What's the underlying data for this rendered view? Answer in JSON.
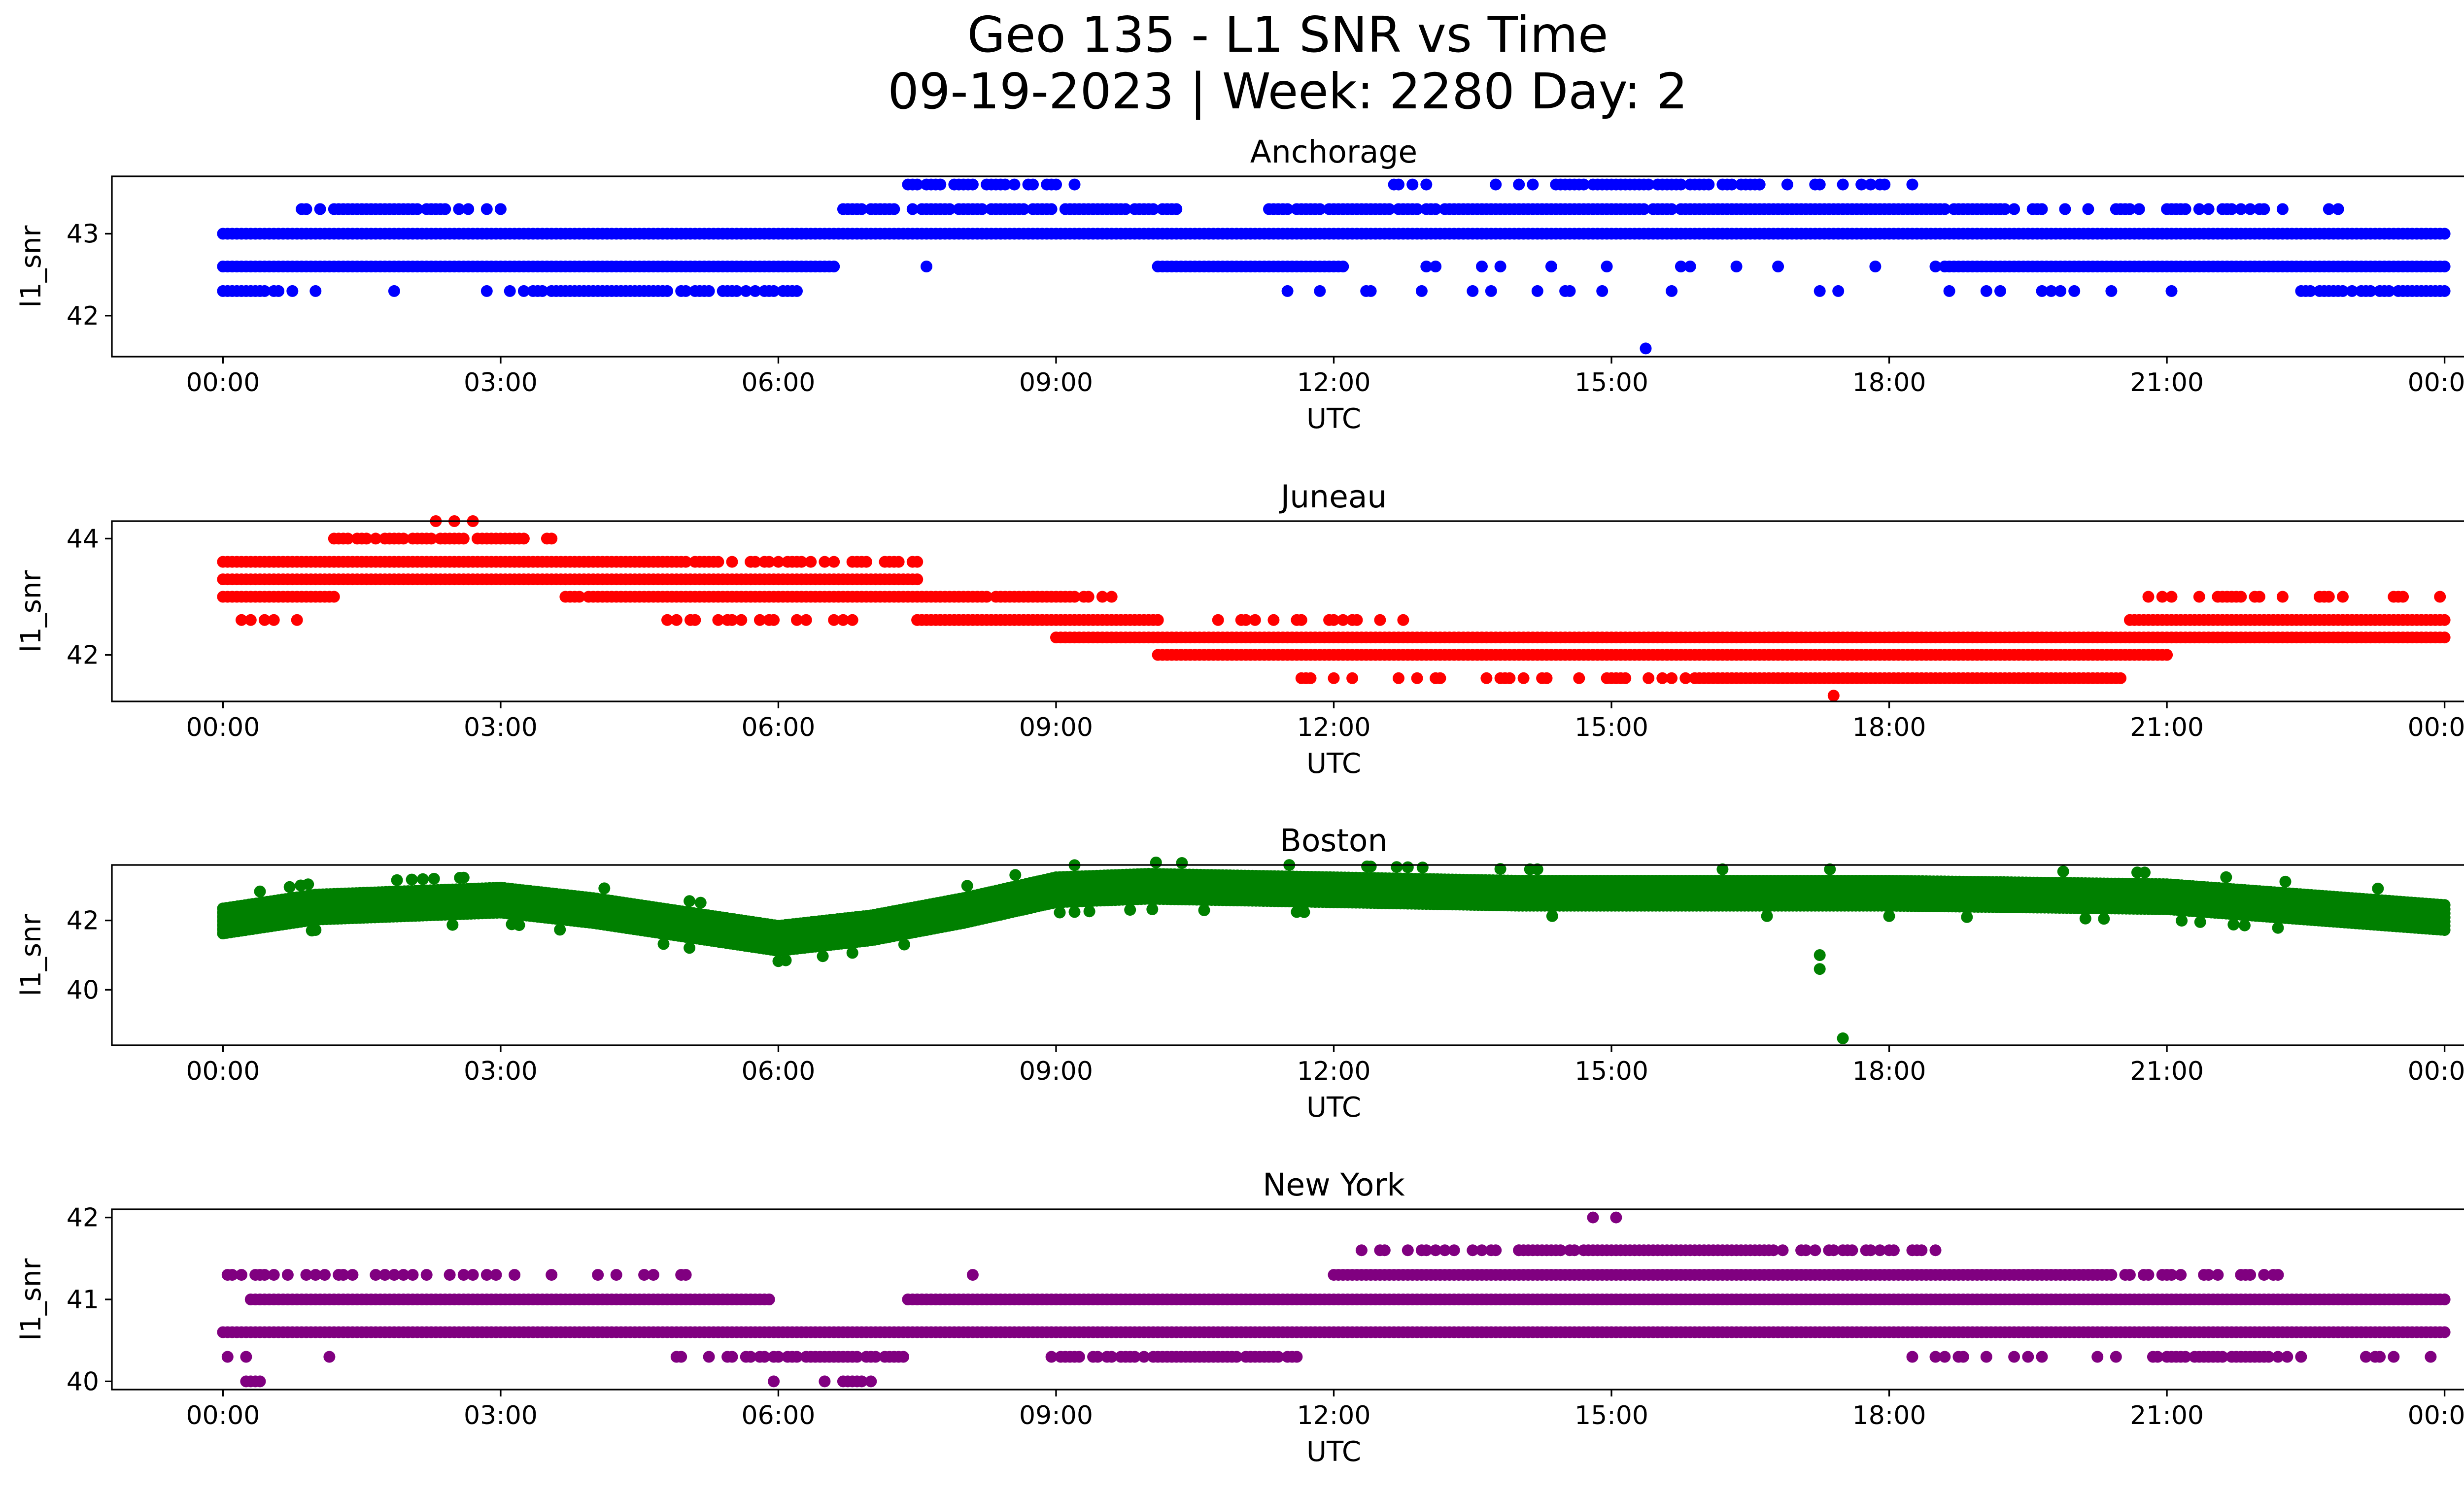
{
  "figure": {
    "title_line1": "Geo 135 - L1 SNR vs Time",
    "title_line2": "09-19-2023 | Week: 2280 Day: 2"
  },
  "chart_data": [
    {
      "type": "scatter",
      "title": "Anchorage",
      "xlabel": "UTC",
      "ylabel": "l1_snr",
      "color": "#0000ff",
      "xlim_hours": [
        -1.2,
        25.2
      ],
      "ylim": [
        41.5,
        43.7
      ],
      "xticks": [
        "00:00",
        "03:00",
        "06:00",
        "09:00",
        "12:00",
        "15:00",
        "18:00",
        "21:00",
        "00:00"
      ],
      "yticks": [
        42,
        43
      ],
      "grid": false,
      "bands": [
        {
          "y": 43.0,
          "ranges": [
            [
              0.0,
              24.0
            ]
          ],
          "density": 1.0
        },
        {
          "y": 42.6,
          "ranges": [
            [
              0.0,
              6.6
            ],
            [
              10.1,
              12.1
            ],
            [
              18.6,
              24.0
            ]
          ],
          "density": 1.0
        },
        {
          "y": 42.6,
          "ranges": [
            [
              6.6,
              8.0
            ],
            [
              12.1,
              18.6
            ]
          ],
          "density": 0.12
        },
        {
          "y": 42.3,
          "ranges": [
            [
              0.0,
              0.6
            ],
            [
              3.2,
              6.2
            ],
            [
              22.5,
              24.0
            ]
          ],
          "density": 0.85
        },
        {
          "y": 42.3,
          "ranges": [
            [
              0.6,
              3.2
            ],
            [
              10.7,
              22.5
            ]
          ],
          "density": 0.08
        },
        {
          "y": 43.3,
          "ranges": [
            [
              1.2,
              2.4
            ],
            [
              6.7,
              10.3
            ],
            [
              11.3,
              19.2
            ]
          ],
          "density": 0.9
        },
        {
          "y": 43.3,
          "ranges": [
            [
              0.7,
              1.2
            ],
            [
              2.4,
              3.0
            ],
            [
              19.2,
              22.9
            ]
          ],
          "density": 0.35
        },
        {
          "y": 43.6,
          "ranges": [
            [
              7.4,
              9.0
            ],
            [
              14.4,
              16.6
            ]
          ],
          "density": 0.75
        },
        {
          "y": 43.6,
          "ranges": [
            [
              12.5,
              14.4
            ],
            [
              16.6,
              18.4
            ]
          ],
          "density": 0.22
        }
      ],
      "outliers": [
        {
          "x": 15.37,
          "y": 41.6
        },
        {
          "x": 9.2,
          "y": 43.6
        },
        {
          "x": 12.65,
          "y": 43.6
        }
      ]
    },
    {
      "type": "scatter",
      "title": "Juneau",
      "xlabel": "UTC",
      "ylabel": "l1_snr",
      "color": "#ff0000",
      "xlim_hours": [
        -1.2,
        25.2
      ],
      "ylim": [
        41.2,
        44.3
      ],
      "xticks": [
        "00:00",
        "03:00",
        "06:00",
        "09:00",
        "12:00",
        "15:00",
        "18:00",
        "21:00",
        "00:00"
      ],
      "yticks": [
        42,
        44
      ],
      "grid": false,
      "bands": [
        {
          "y": 43.3,
          "ranges": [
            [
              0.0,
              7.5
            ]
          ],
          "density": 1.0
        },
        {
          "y": 43.6,
          "ranges": [
            [
              0.0,
              5.0
            ]
          ],
          "density": 1.0
        },
        {
          "y": 43.6,
          "ranges": [
            [
              5.0,
              7.5
            ]
          ],
          "density": 0.55
        },
        {
          "y": 44.0,
          "ranges": [
            [
              1.2,
              3.2
            ]
          ],
          "density": 0.9
        },
        {
          "y": 44.0,
          "ranges": [
            [
              3.2,
              3.7
            ]
          ],
          "density": 0.4
        },
        {
          "y": 43.0,
          "ranges": [
            [
              0.0,
              1.2
            ],
            [
              3.7,
              9.6
            ]
          ],
          "density": 0.95
        },
        {
          "y": 42.6,
          "ranges": [
            [
              0.0,
              0.8
            ]
          ],
          "density": 0.3
        },
        {
          "y": 42.6,
          "ranges": [
            [
              7.5,
              10.1
            ],
            [
              20.6,
              24.0
            ]
          ],
          "density": 1.0
        },
        {
          "y": 42.6,
          "ranges": [
            [
              4.6,
              7.5
            ],
            [
              10.1,
              13.5
            ]
          ],
          "density": 0.3
        },
        {
          "y": 42.3,
          "ranges": [
            [
              9.0,
              24.0
            ]
          ],
          "density": 1.0
        },
        {
          "y": 42.0,
          "ranges": [
            [
              10.1,
              21.0
            ]
          ],
          "density": 1.0
        },
        {
          "y": 41.6,
          "ranges": [
            [
              15.9,
              20.5
            ]
          ],
          "density": 1.0
        },
        {
          "y": 41.6,
          "ranges": [
            [
              11.0,
              15.9
            ]
          ],
          "density": 0.25
        },
        {
          "y": 43.0,
          "ranges": [
            [
              20.8,
              24.0
            ]
          ],
          "density": 0.3
        }
      ],
      "outliers": [
        {
          "x": 2.3,
          "y": 44.3
        },
        {
          "x": 2.5,
          "y": 44.3
        },
        {
          "x": 2.7,
          "y": 44.3
        },
        {
          "x": 17.4,
          "y": 41.3
        }
      ]
    },
    {
      "type": "scatter",
      "title": "Boston",
      "xlabel": "UTC",
      "ylabel": "l1_snr",
      "color": "#008000",
      "xlim_hours": [
        -1.2,
        25.2
      ],
      "ylim": [
        38.4,
        43.6
      ],
      "xticks": [
        "00:00",
        "03:00",
        "06:00",
        "09:00",
        "12:00",
        "15:00",
        "18:00",
        "21:00",
        "00:00"
      ],
      "yticks": [
        40,
        42
      ],
      "grid": false,
      "profile": [
        [
          0.0,
          42.0
        ],
        [
          1.0,
          42.4
        ],
        [
          3.0,
          42.6
        ],
        [
          4.0,
          42.3
        ],
        [
          5.0,
          41.9
        ],
        [
          6.0,
          41.5
        ],
        [
          7.0,
          41.8
        ],
        [
          8.0,
          42.3
        ],
        [
          9.0,
          42.9
        ],
        [
          10.0,
          43.0
        ],
        [
          14.0,
          42.8
        ],
        [
          18.0,
          42.8
        ],
        [
          21.0,
          42.7
        ],
        [
          24.0,
          42.1
        ]
      ],
      "spread": 0.75,
      "outliers": [
        {
          "x": 17.25,
          "y": 41.0
        },
        {
          "x": 17.25,
          "y": 40.6
        },
        {
          "x": 17.5,
          "y": 38.6
        }
      ]
    },
    {
      "type": "scatter",
      "title": "New York",
      "xlabel": "UTC",
      "ylabel": "l1_snr",
      "color": "#800080",
      "xlim_hours": [
        -1.2,
        25.2
      ],
      "ylim": [
        39.9,
        42.1
      ],
      "xticks": [
        "00:00",
        "03:00",
        "06:00",
        "09:00",
        "12:00",
        "15:00",
        "18:00",
        "21:00",
        "00:00"
      ],
      "yticks": [
        40,
        41,
        42
      ],
      "grid": false,
      "bands": [
        {
          "y": 40.6,
          "ranges": [
            [
              0.0,
              24.0
            ]
          ],
          "density": 1.0
        },
        {
          "y": 41.0,
          "ranges": [
            [
              0.3,
              5.9
            ],
            [
              7.4,
              24.0
            ]
          ],
          "density": 1.0
        },
        {
          "y": 41.3,
          "ranges": [
            [
              12.0,
              20.4
            ]
          ],
          "density": 1.0
        },
        {
          "y": 41.3,
          "ranges": [
            [
              0.0,
              5.0
            ],
            [
              20.4,
              22.4
            ]
          ],
          "density": 0.35
        },
        {
          "y": 41.6,
          "ranges": [
            [
              14.0,
              16.6
            ]
          ],
          "density": 0.95
        },
        {
          "y": 41.6,
          "ranges": [
            [
              12.3,
              14.0
            ],
            [
              16.6,
              18.5
            ]
          ],
          "density": 0.3
        },
        {
          "y": 40.3,
          "ranges": [
            [
              5.8,
              7.4
            ],
            [
              8.9,
              11.6
            ],
            [
              21.0,
              22.2
            ]
          ],
          "density": 0.85
        },
        {
          "y": 40.3,
          "ranges": [
            [
              0.0,
              1.5
            ],
            [
              4.9,
              5.8
            ],
            [
              18.0,
              21.0
            ],
            [
              22.2,
              24.0
            ]
          ],
          "density": 0.25
        },
        {
          "y": 40.0,
          "ranges": [
            [
              0.2,
              0.5
            ],
            [
              6.5,
              7.0
            ]
          ],
          "density": 0.6
        }
      ],
      "outliers": [
        {
          "x": 14.8,
          "y": 42.0
        },
        {
          "x": 15.05,
          "y": 42.0
        },
        {
          "x": 5.95,
          "y": 40.0
        },
        {
          "x": 8.1,
          "y": 41.3
        }
      ]
    }
  ]
}
